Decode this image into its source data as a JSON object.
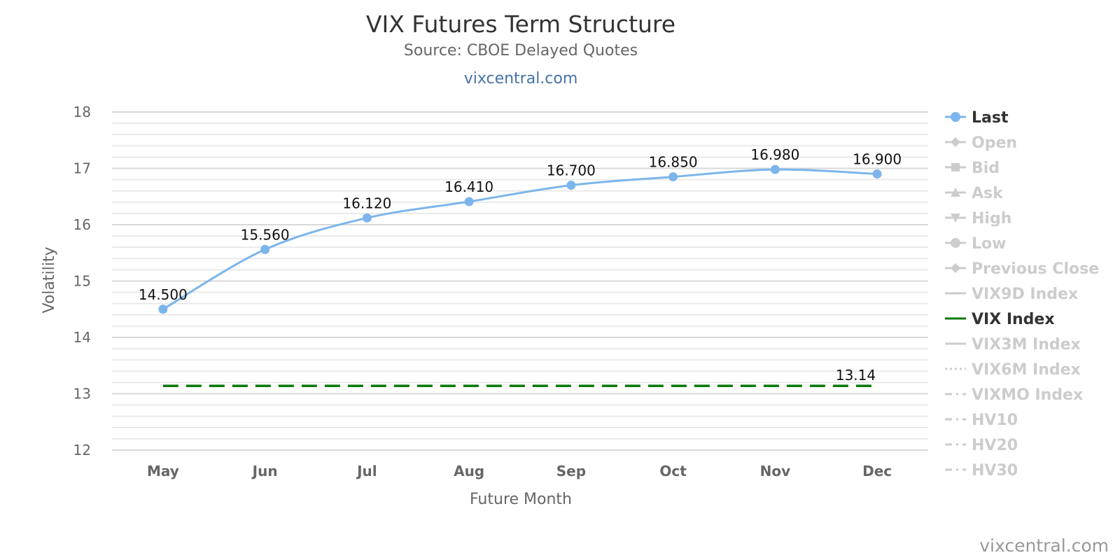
{
  "chart_data": {
    "type": "line",
    "title": "VIX Futures Term Structure",
    "subtitle": "Source: CBOE Delayed Quotes",
    "site_link": "vixcentral.com",
    "credit": "vixcentral.com",
    "xlabel": "Future Month",
    "ylabel": "Volatility",
    "ylim": [
      12,
      18
    ],
    "y_ticks": [
      "12",
      "13",
      "14",
      "15",
      "16",
      "17",
      "18"
    ],
    "categories": [
      "May",
      "Jun",
      "Jul",
      "Aug",
      "Sep",
      "Oct",
      "Nov",
      "Dec"
    ],
    "grid": true,
    "legend_position": "right",
    "series": [
      {
        "name": "Last",
        "style": "spline-markers",
        "color": "#7cb5ec",
        "values": [
          14.5,
          15.56,
          16.12,
          16.41,
          16.7,
          16.85,
          16.98,
          16.9
        ],
        "labels": [
          "14.500",
          "15.560",
          "16.120",
          "16.410",
          "16.700",
          "16.850",
          "16.980",
          "16.900"
        ]
      },
      {
        "name": "VIX Index",
        "style": "dashed",
        "color": "#0d7a0d",
        "values": [
          13.14,
          13.14,
          13.14,
          13.14,
          13.14,
          13.14,
          13.14,
          13.14
        ],
        "end_label": "13.14"
      }
    ],
    "legend": [
      {
        "name": "Last",
        "symbol": "line-circle",
        "active": true,
        "color": "#7cb5ec"
      },
      {
        "name": "Open",
        "symbol": "line-diamond",
        "active": false
      },
      {
        "name": "Bid",
        "symbol": "line-square",
        "active": false
      },
      {
        "name": "Ask",
        "symbol": "line-triangle",
        "active": false
      },
      {
        "name": "High",
        "symbol": "line-triangle-down",
        "active": false
      },
      {
        "name": "Low",
        "symbol": "line-circle",
        "active": false
      },
      {
        "name": "Previous Close",
        "symbol": "line-diamond",
        "active": false
      },
      {
        "name": "VIX9D Index",
        "symbol": "line",
        "active": false
      },
      {
        "name": "VIX Index",
        "symbol": "line",
        "active": true,
        "color": "#0d7a0d"
      },
      {
        "name": "VIX3M Index",
        "symbol": "line",
        "active": false
      },
      {
        "name": "VIX6M Index",
        "symbol": "dotted",
        "active": false
      },
      {
        "name": "VIXMO Index",
        "symbol": "dashdot",
        "active": false
      },
      {
        "name": "HV10",
        "symbol": "dashdot",
        "active": false
      },
      {
        "name": "HV20",
        "symbol": "dashdot",
        "active": false
      },
      {
        "name": "HV30",
        "symbol": "dashdot",
        "active": false
      }
    ],
    "inactive_color": "#cccccc",
    "active_text_color": "#333333"
  }
}
